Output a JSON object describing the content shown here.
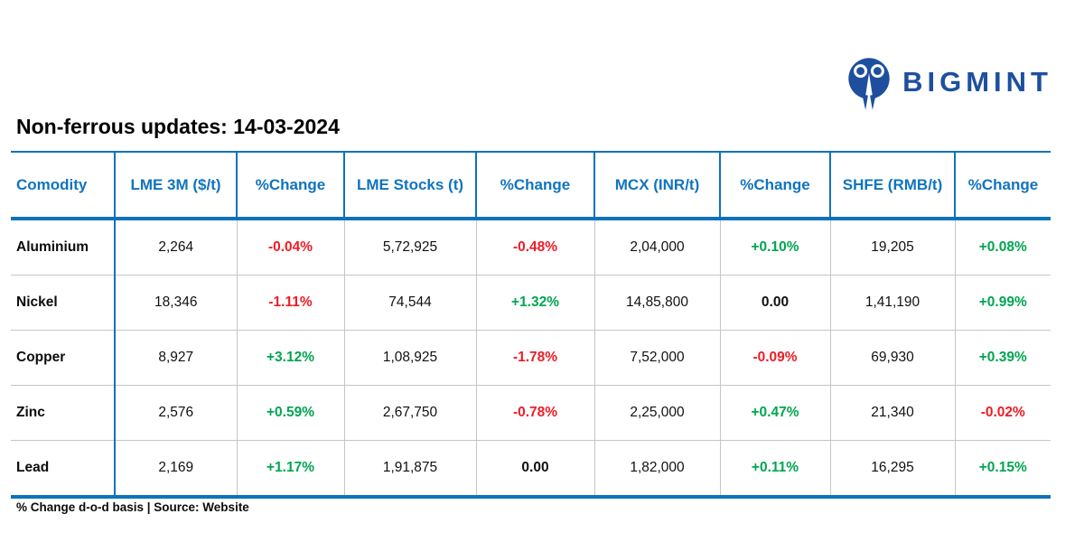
{
  "title": "Non-ferrous updates: 14-03-2024",
  "logo": {
    "text": "BIGMINT",
    "color": "#1d4f9e"
  },
  "colors": {
    "accent_blue": "#0e72bb",
    "header_text_blue": "#1174be",
    "positive_green": "#00a551",
    "negative_red": "#ee1c25",
    "body_text": "#111111",
    "grid_gray": "#c6c6c6",
    "logo_blue": "#1d4f9e"
  },
  "table": {
    "columns": [
      "Comodity",
      "LME 3M ($/t)",
      "%Change",
      "LME Stocks (t)",
      "%Change",
      "MCX (INR/t)",
      "%Change",
      "SHFE (RMB/t)",
      "%Change"
    ],
    "change_columns": [
      2,
      4,
      6,
      8
    ],
    "rows": [
      [
        "Aluminium",
        "2,264",
        "-0.04%",
        "5,72,925",
        "-0.48%",
        "2,04,000",
        "+0.10%",
        "19,205",
        "+0.08%"
      ],
      [
        "Nickel",
        "18,346",
        "-1.11%",
        "74,544",
        "+1.32%",
        "14,85,800",
        "0.00",
        "1,41,190",
        "+0.99%"
      ],
      [
        "Copper",
        "8,927",
        "+3.12%",
        "1,08,925",
        "-1.78%",
        "7,52,000",
        "-0.09%",
        "69,930",
        "+0.39%"
      ],
      [
        "Zinc",
        "2,576",
        "+0.59%",
        "2,67,750",
        "-0.78%",
        "2,25,000",
        "+0.47%",
        "21,340",
        "-0.02%"
      ],
      [
        "Lead",
        "2,169",
        "+1.17%",
        "1,91,875",
        "0.00",
        "1,82,000",
        "+0.11%",
        "16,295",
        "+0.15%"
      ]
    ]
  },
  "footnote": "% Change d-o-d basis | Source: Website",
  "chart_data": {
    "type": "table",
    "title": "Non-ferrous updates: 14-03-2024",
    "columns": [
      "Comodity",
      "LME 3M ($/t)",
      "%Change",
      "LME Stocks (t)",
      "%Change",
      "MCX (INR/t)",
      "%Change",
      "SHFE (RMB/t)",
      "%Change"
    ],
    "rows": [
      [
        "Aluminium",
        "2,264",
        "-0.04%",
        "5,72,925",
        "-0.48%",
        "2,04,000",
        "+0.10%",
        "19,205",
        "+0.08%"
      ],
      [
        "Nickel",
        "18,346",
        "-1.11%",
        "74,544",
        "+1.32%",
        "14,85,800",
        "0.00",
        "1,41,190",
        "+0.99%"
      ],
      [
        "Copper",
        "8,927",
        "+3.12%",
        "1,08,925",
        "-1.78%",
        "7,52,000",
        "-0.09%",
        "69,930",
        "+0.39%"
      ],
      [
        "Zinc",
        "2,576",
        "+0.59%",
        "2,67,750",
        "-0.78%",
        "2,25,000",
        "+0.47%",
        "21,340",
        "-0.02%"
      ],
      [
        "Lead",
        "2,169",
        "+1.17%",
        "1,91,875",
        "0.00",
        "1,82,000",
        "+0.11%",
        "16,295",
        "+0.15%"
      ]
    ],
    "source_note": "% Change d-o-d basis | Source: Website"
  }
}
